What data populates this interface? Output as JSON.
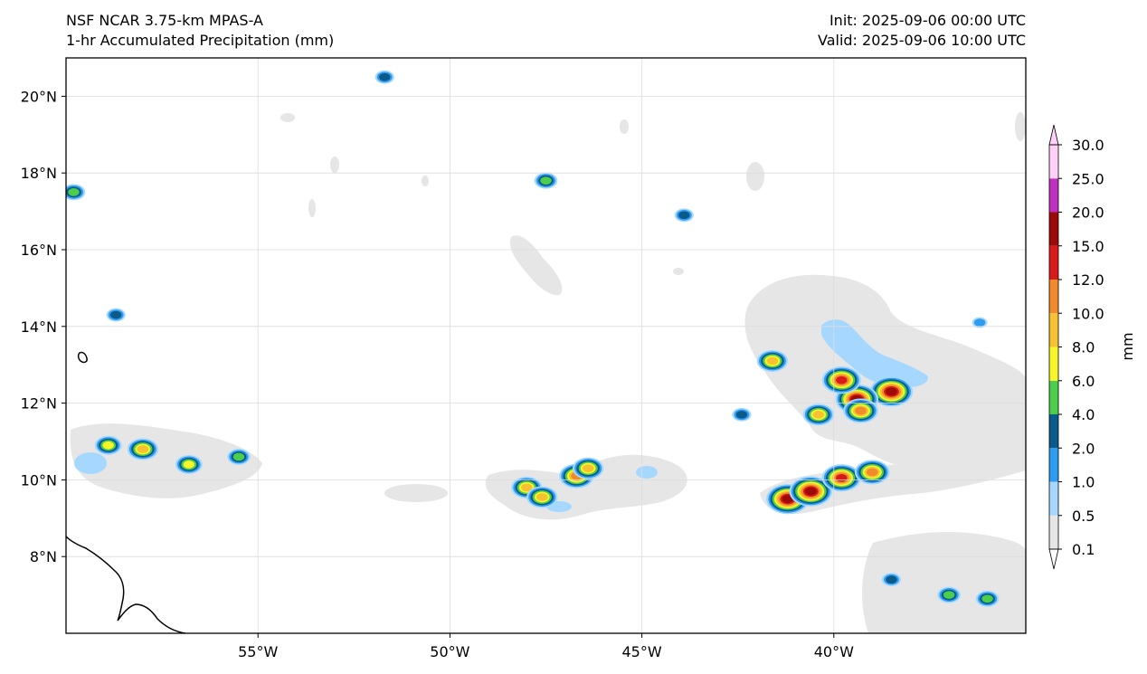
{
  "header": {
    "model": "NSF NCAR 3.75-km MPAS-A",
    "field": "1-hr Accumulated Precipitation (mm)",
    "init": "Init: 2025-09-06 00:00 UTC",
    "valid": "Valid: 2025-09-06 10:00 UTC"
  },
  "map": {
    "lon_range": [
      -60,
      -35
    ],
    "lat_range": [
      6,
      21
    ],
    "lon_ticks": [
      {
        "value": -55,
        "label": "55°W"
      },
      {
        "value": -50,
        "label": "50°W"
      },
      {
        "value": -45,
        "label": "45°W"
      },
      {
        "value": -40,
        "label": "40°W"
      }
    ],
    "lat_ticks": [
      {
        "value": 8,
        "label": "8°N"
      },
      {
        "value": 10,
        "label": "10°N"
      },
      {
        "value": 12,
        "label": "12°N"
      },
      {
        "value": 14,
        "label": "14°N"
      },
      {
        "value": 16,
        "label": "16°N"
      },
      {
        "value": 18,
        "label": "18°N"
      },
      {
        "value": 20,
        "label": "20°N"
      }
    ],
    "gridlines": true,
    "coastline_color": "#000000"
  },
  "colorbar": {
    "unit": "mm",
    "levels": [
      "0.1",
      "0.5",
      "1.0",
      "2.0",
      "4.0",
      "6.0",
      "8.0",
      "10.0",
      "12.0",
      "15.0",
      "20.0",
      "25.0",
      "30.0"
    ],
    "colors": [
      "#e6e6e6",
      "#a6d8ff",
      "#2e9cf0",
      "#0a5a8c",
      "#4ccd4c",
      "#f5f52a",
      "#f6c232",
      "#f08a2a",
      "#d81a1a",
      "#9c0a0a",
      "#c030c0",
      "#ffd0f8"
    ],
    "extend": "both"
  },
  "precip_cells": [
    {
      "lon": -41.2,
      "lat": 9.5,
      "intensity": 9
    },
    {
      "lon": -40.6,
      "lat": 9.7,
      "intensity": 9
    },
    {
      "lon": -39.8,
      "lat": 10.05,
      "intensity": 8
    },
    {
      "lon": -39.0,
      "lat": 10.2,
      "intensity": 7
    },
    {
      "lon": -38.5,
      "lat": 12.3,
      "intensity": 9
    },
    {
      "lon": -39.4,
      "lat": 12.1,
      "intensity": 9
    },
    {
      "lon": -39.8,
      "lat": 12.6,
      "intensity": 8
    },
    {
      "lon": -39.3,
      "lat": 11.8,
      "intensity": 7
    },
    {
      "lon": -40.4,
      "lat": 11.7,
      "intensity": 6
    },
    {
      "lon": -41.6,
      "lat": 13.1,
      "intensity": 6
    },
    {
      "lon": -46.7,
      "lat": 10.1,
      "intensity": 7
    },
    {
      "lon": -46.4,
      "lat": 10.3,
      "intensity": 6
    },
    {
      "lon": -48.0,
      "lat": 9.8,
      "intensity": 6
    },
    {
      "lon": -47.6,
      "lat": 9.55,
      "intensity": 6
    },
    {
      "lon": -58.0,
      "lat": 10.8,
      "intensity": 6
    },
    {
      "lon": -56.8,
      "lat": 10.4,
      "intensity": 5
    },
    {
      "lon": -58.9,
      "lat": 10.9,
      "intensity": 5
    },
    {
      "lon": -55.5,
      "lat": 10.6,
      "intensity": 4
    },
    {
      "lon": -59.8,
      "lat": 17.5,
      "intensity": 4
    },
    {
      "lon": -51.7,
      "lat": 20.5,
      "intensity": 3
    },
    {
      "lon": -47.5,
      "lat": 17.8,
      "intensity": 4
    },
    {
      "lon": -58.7,
      "lat": 14.3,
      "intensity": 3
    },
    {
      "lon": -43.9,
      "lat": 16.9,
      "intensity": 3
    },
    {
      "lon": -36.2,
      "lat": 14.1,
      "intensity": 2
    },
    {
      "lon": -37.0,
      "lat": 7.0,
      "intensity": 4
    },
    {
      "lon": -36.0,
      "lat": 6.9,
      "intensity": 4
    },
    {
      "lon": -38.5,
      "lat": 7.4,
      "intensity": 3
    },
    {
      "lon": -42.4,
      "lat": 11.7,
      "intensity": 3
    }
  ]
}
